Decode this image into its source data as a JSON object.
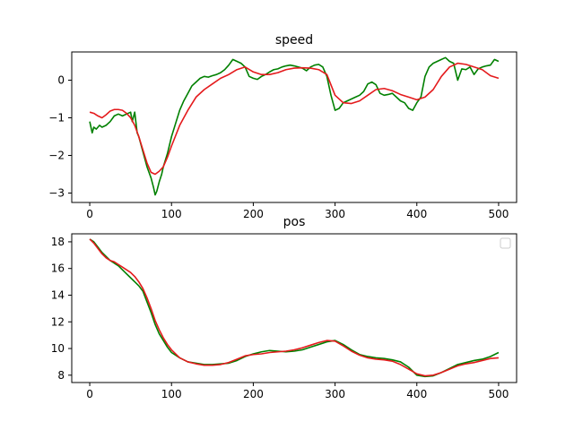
{
  "chart_data": [
    {
      "type": "line",
      "title": "speed",
      "xlabel": "",
      "ylabel": "",
      "xlim": [
        -22,
        522
      ],
      "ylim": [
        -3.25,
        0.75
      ],
      "xticks": [
        0,
        100,
        200,
        300,
        400,
        500
      ],
      "yticks": [
        -3,
        -2,
        -1,
        0
      ],
      "grid": false,
      "series": [
        {
          "color": "#008000",
          "x": [
            0,
            3,
            5,
            8,
            12,
            15,
            20,
            25,
            30,
            35,
            40,
            45,
            50,
            52,
            55,
            58,
            60,
            65,
            70,
            75,
            78,
            80,
            82,
            85,
            88,
            90,
            95,
            100,
            105,
            110,
            115,
            120,
            125,
            130,
            135,
            140,
            145,
            150,
            155,
            160,
            165,
            170,
            175,
            180,
            185,
            190,
            195,
            200,
            205,
            210,
            215,
            220,
            225,
            230,
            235,
            240,
            245,
            250,
            255,
            260,
            265,
            270,
            275,
            280,
            285,
            290,
            295,
            300,
            305,
            310,
            315,
            320,
            325,
            330,
            335,
            340,
            345,
            350,
            355,
            360,
            365,
            370,
            375,
            380,
            385,
            390,
            395,
            400,
            405,
            410,
            415,
            420,
            425,
            430,
            435,
            440,
            445,
            450,
            455,
            460,
            465,
            470,
            475,
            480,
            485,
            490,
            495,
            500
          ],
          "y": [
            -1.1,
            -1.4,
            -1.25,
            -1.3,
            -1.2,
            -1.25,
            -1.2,
            -1.1,
            -0.95,
            -0.9,
            -0.95,
            -0.9,
            -0.85,
            -1.1,
            -0.85,
            -1.4,
            -1.5,
            -1.9,
            -2.3,
            -2.6,
            -2.85,
            -3.05,
            -2.95,
            -2.7,
            -2.5,
            -2.3,
            -1.95,
            -1.5,
            -1.15,
            -0.8,
            -0.55,
            -0.35,
            -0.15,
            -0.05,
            0.05,
            0.1,
            0.08,
            0.12,
            0.15,
            0.2,
            0.28,
            0.4,
            0.55,
            0.5,
            0.45,
            0.35,
            0.1,
            0.05,
            0.02,
            0.1,
            0.15,
            0.22,
            0.28,
            0.3,
            0.35,
            0.38,
            0.4,
            0.38,
            0.35,
            0.32,
            0.25,
            0.35,
            0.4,
            0.42,
            0.35,
            0.1,
            -0.4,
            -0.8,
            -0.75,
            -0.6,
            -0.55,
            -0.5,
            -0.45,
            -0.4,
            -0.3,
            -0.1,
            -0.05,
            -0.12,
            -0.35,
            -0.4,
            -0.38,
            -0.35,
            -0.45,
            -0.55,
            -0.6,
            -0.75,
            -0.8,
            -0.6,
            -0.45,
            0.1,
            0.35,
            0.45,
            0.5,
            0.55,
            0.6,
            0.5,
            0.45,
            0.0,
            0.3,
            0.28,
            0.35,
            0.15,
            0.3,
            0.35,
            0.38,
            0.4,
            0.55,
            0.5
          ]
        },
        {
          "color": "#e41a1c",
          "x": [
            0,
            5,
            10,
            15,
            20,
            25,
            30,
            35,
            40,
            45,
            50,
            55,
            60,
            65,
            70,
            75,
            80,
            85,
            90,
            95,
            100,
            110,
            120,
            130,
            140,
            150,
            160,
            170,
            180,
            190,
            200,
            210,
            220,
            230,
            240,
            250,
            260,
            270,
            280,
            290,
            300,
            310,
            320,
            330,
            340,
            350,
            360,
            370,
            380,
            390,
            400,
            410,
            420,
            430,
            440,
            450,
            460,
            470,
            480,
            490,
            500
          ],
          "y": [
            -0.85,
            -0.88,
            -0.95,
            -1.0,
            -0.92,
            -0.82,
            -0.78,
            -0.78,
            -0.8,
            -0.88,
            -1.0,
            -1.2,
            -1.5,
            -1.85,
            -2.2,
            -2.45,
            -2.5,
            -2.42,
            -2.3,
            -2.05,
            -1.75,
            -1.2,
            -0.8,
            -0.45,
            -0.25,
            -0.1,
            0.05,
            0.15,
            0.28,
            0.35,
            0.22,
            0.15,
            0.15,
            0.2,
            0.28,
            0.32,
            0.33,
            0.32,
            0.28,
            0.15,
            -0.4,
            -0.6,
            -0.62,
            -0.55,
            -0.4,
            -0.25,
            -0.22,
            -0.28,
            -0.38,
            -0.45,
            -0.52,
            -0.45,
            -0.25,
            0.1,
            0.35,
            0.45,
            0.42,
            0.35,
            0.28,
            0.12,
            0.05
          ]
        }
      ]
    },
    {
      "type": "line",
      "title": "pos",
      "xlabel": "",
      "ylabel": "",
      "xlim": [
        -22,
        522
      ],
      "ylim": [
        7.45,
        18.6
      ],
      "xticks": [
        0,
        100,
        200,
        300,
        400,
        500
      ],
      "yticks": [
        8,
        10,
        12,
        14,
        16,
        18
      ],
      "grid": false,
      "legend": "upper right",
      "series": [
        {
          "color": "#008000",
          "x": [
            0,
            5,
            10,
            15,
            20,
            25,
            30,
            35,
            40,
            45,
            50,
            55,
            60,
            65,
            70,
            75,
            80,
            85,
            90,
            95,
            100,
            110,
            120,
            130,
            140,
            150,
            160,
            170,
            180,
            190,
            200,
            210,
            220,
            230,
            240,
            250,
            260,
            270,
            280,
            290,
            300,
            310,
            320,
            330,
            340,
            350,
            360,
            370,
            380,
            390,
            400,
            410,
            420,
            430,
            440,
            450,
            460,
            470,
            480,
            490,
            500
          ],
          "y": [
            18.2,
            18.0,
            17.6,
            17.2,
            16.9,
            16.6,
            16.4,
            16.2,
            15.9,
            15.6,
            15.3,
            15.0,
            14.7,
            14.3,
            13.5,
            12.7,
            11.8,
            11.1,
            10.6,
            10.1,
            9.7,
            9.3,
            9.0,
            8.9,
            8.8,
            8.8,
            8.85,
            8.9,
            9.1,
            9.4,
            9.6,
            9.75,
            9.85,
            9.8,
            9.75,
            9.8,
            9.9,
            10.1,
            10.3,
            10.5,
            10.6,
            10.3,
            9.9,
            9.55,
            9.4,
            9.3,
            9.25,
            9.15,
            9.0,
            8.6,
            8.0,
            7.9,
            7.95,
            8.2,
            8.5,
            8.8,
            8.95,
            9.1,
            9.2,
            9.4,
            9.7
          ]
        },
        {
          "color": "#e41a1c",
          "x": [
            0,
            5,
            10,
            15,
            20,
            25,
            30,
            35,
            40,
            45,
            50,
            55,
            60,
            65,
            70,
            75,
            80,
            85,
            90,
            95,
            100,
            110,
            120,
            130,
            140,
            150,
            160,
            170,
            180,
            190,
            200,
            210,
            220,
            230,
            240,
            250,
            260,
            270,
            280,
            290,
            300,
            310,
            320,
            330,
            340,
            350,
            360,
            370,
            380,
            390,
            400,
            410,
            420,
            430,
            440,
            450,
            460,
            470,
            480,
            490,
            500
          ],
          "y": [
            18.2,
            17.9,
            17.5,
            17.1,
            16.8,
            16.6,
            16.5,
            16.3,
            16.1,
            15.9,
            15.7,
            15.4,
            15.0,
            14.5,
            13.8,
            13.0,
            12.1,
            11.4,
            10.8,
            10.3,
            9.9,
            9.3,
            9.0,
            8.85,
            8.75,
            8.75,
            8.8,
            8.95,
            9.2,
            9.45,
            9.55,
            9.6,
            9.7,
            9.75,
            9.8,
            9.9,
            10.05,
            10.25,
            10.45,
            10.6,
            10.55,
            10.2,
            9.8,
            9.5,
            9.3,
            9.2,
            9.15,
            9.05,
            8.8,
            8.45,
            8.1,
            7.95,
            8.0,
            8.2,
            8.45,
            8.7,
            8.85,
            8.95,
            9.1,
            9.25,
            9.3
          ]
        }
      ]
    }
  ]
}
